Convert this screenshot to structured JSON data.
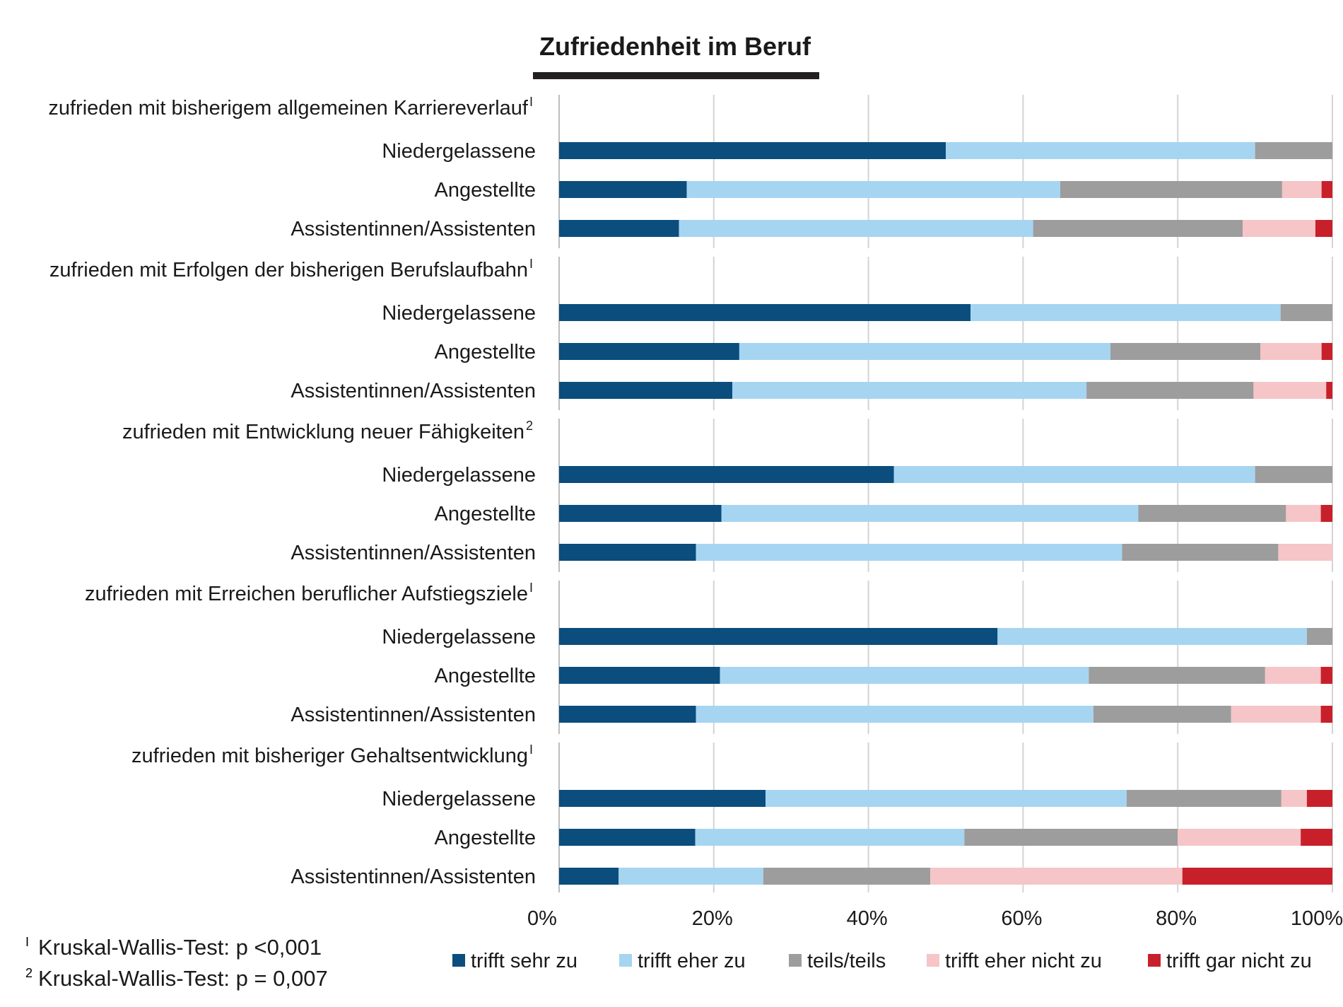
{
  "chart_data": {
    "type": "bar",
    "orientation": "horizontal",
    "stacked": true,
    "percent": true,
    "title": "Zufriedenheit im Beruf",
    "xlim": [
      0,
      100
    ],
    "x_ticks": [
      "0%",
      "20%",
      "40%",
      "60%",
      "80%",
      "100%"
    ],
    "grid": "vertical",
    "legend_position": "bottom",
    "series": [
      {
        "name": "trifft sehr zu",
        "color": "#0b4d7d"
      },
      {
        "name": "trifft eher zu",
        "color": "#a6d5f2"
      },
      {
        "name": "teils/teils",
        "color": "#9d9d9d"
      },
      {
        "name": "trifft eher nicht zu",
        "color": "#f6c5c7"
      },
      {
        "name": "trifft gar nicht zu",
        "color": "#c8202a"
      }
    ],
    "groups": [
      {
        "label": "zufrieden mit bisherigem allgemeinen Karriereverlauf",
        "footnote": "I",
        "rows": [
          {
            "label": "Niedergelassene",
            "values": [
              50,
              40,
              10,
              0,
              0
            ]
          },
          {
            "label": "Angestellte",
            "values": [
              16.5,
              48.3,
              28.7,
              5.1,
              1.4
            ]
          },
          {
            "label": "Assistentinnen/Assistenten",
            "values": [
              15.5,
              45.8,
              27.1,
              9.4,
              2.2
            ]
          }
        ]
      },
      {
        "label": "zufrieden mit Erfolgen der bisherigen Berufslaufbahn",
        "footnote": "I",
        "rows": [
          {
            "label": "Niedergelassene",
            "values": [
              53.2,
              40.1,
              6.7,
              0,
              0
            ]
          },
          {
            "label": "Angestellte",
            "values": [
              23.3,
              48,
              19.4,
              7.9,
              1.4
            ]
          },
          {
            "label": "Assistentinnen/Assistenten",
            "values": [
              22.4,
              45.8,
              21.6,
              9.4,
              0.8
            ]
          }
        ]
      },
      {
        "label": "zufrieden mit Entwicklung neuer Fähigkeiten",
        "footnote": "2",
        "rows": [
          {
            "label": "Niedergelassene",
            "values": [
              43.3,
              46.7,
              10,
              0,
              0
            ]
          },
          {
            "label": "Angestellte",
            "values": [
              21,
              53.9,
              19.1,
              4.5,
              1.5
            ]
          },
          {
            "label": "Assistentinnen/Assistenten",
            "values": [
              17.7,
              55.1,
              20.2,
              7,
              0
            ]
          }
        ]
      },
      {
        "label": "zufrieden mit Erreichen beruflicher Aufstiegsziele",
        "footnote": "I",
        "rows": [
          {
            "label": "Niedergelassene",
            "values": [
              56.7,
              40,
              3.3,
              0,
              0
            ]
          },
          {
            "label": "Angestellte",
            "values": [
              20.8,
              47.7,
              22.8,
              7.2,
              1.5
            ]
          },
          {
            "label": "Assistentinnen/Assistenten",
            "values": [
              17.7,
              51.4,
              17.8,
              11.6,
              1.5
            ]
          }
        ]
      },
      {
        "label": "zufrieden mit bisheriger Gehaltsentwicklung",
        "footnote": "I",
        "rows": [
          {
            "label": "Niedergelassene",
            "values": [
              26.7,
              46.7,
              20,
              3.3,
              3.3
            ]
          },
          {
            "label": "Angestellte",
            "values": [
              17.6,
              34.8,
              27.6,
              15.9,
              4.1
            ]
          },
          {
            "label": "Assistentinnen/Assistenten",
            "values": [
              7.7,
              18.7,
              21.6,
              32.6,
              19.4
            ]
          }
        ]
      }
    ]
  },
  "footnotes": [
    {
      "mark": "I",
      "text": "Kruskal-Wallis-Test: p <0,001"
    },
    {
      "mark": "2",
      "text": "Kruskal-Wallis-Test: p = 0,007"
    }
  ]
}
